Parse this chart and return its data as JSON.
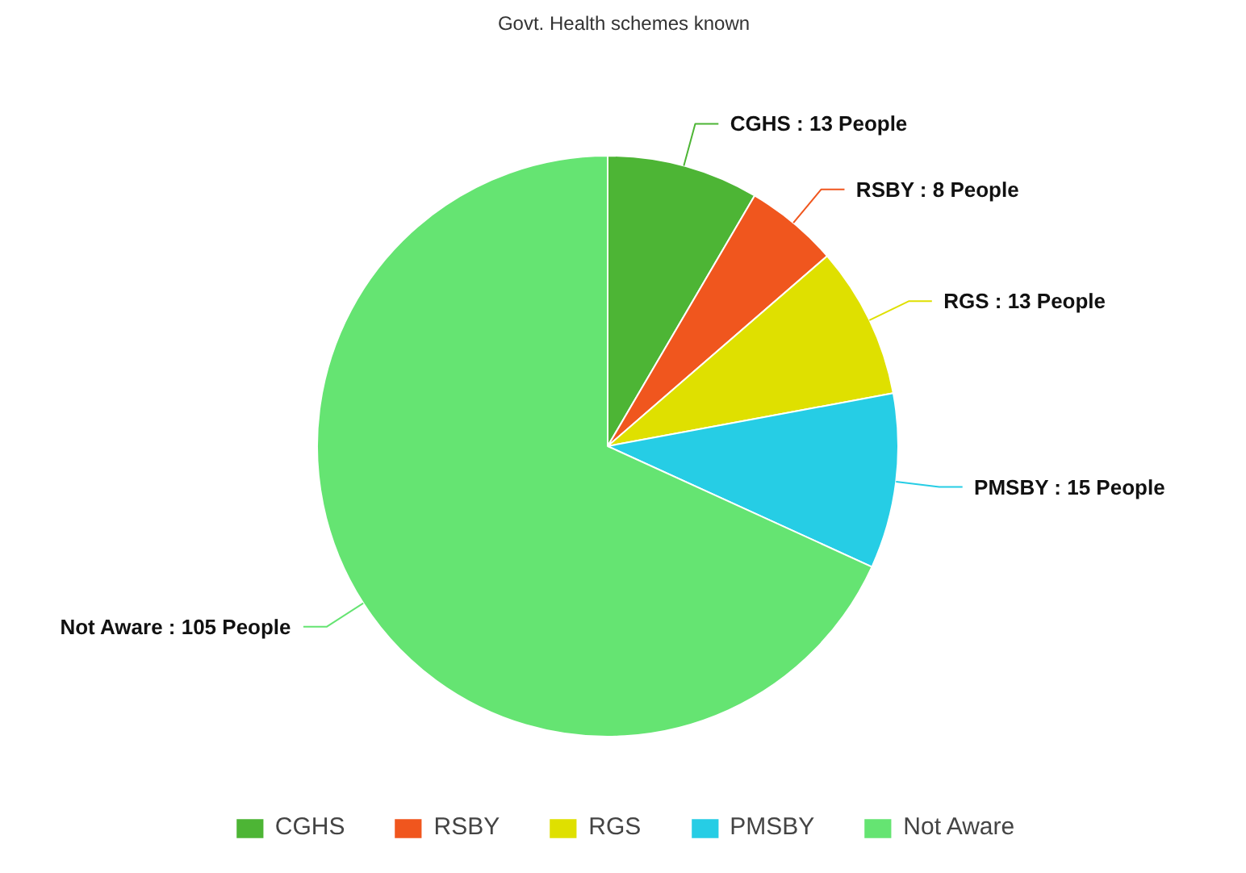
{
  "chart_data": {
    "type": "pie",
    "title": "Govt. Health schemes known",
    "categories": [
      "CGHS",
      "RSBY",
      "RGS",
      "PMSBY",
      "Not Aware"
    ],
    "values": [
      13,
      8,
      13,
      15,
      105
    ],
    "colors": [
      "#4db535",
      "#f0561e",
      "#dfe000",
      "#26cde5",
      "#65e472"
    ],
    "value_labels": [
      "CGHS : 13 People",
      "RSBY : 8 People",
      "RGS : 13 People",
      "PMSBY : 15 People",
      "Not Aware : 105 People"
    ],
    "legend": "bottom"
  }
}
